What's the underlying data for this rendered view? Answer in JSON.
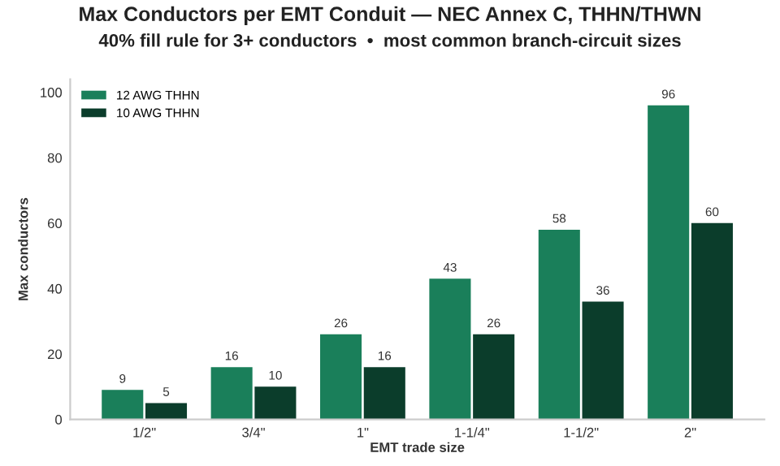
{
  "chart_data": {
    "type": "bar",
    "title": "Max Conductors per EMT Conduit — NEC Annex C, THHN/THWN",
    "subtitle": "40% fill rule for 3+ conductors  •  most common branch-circuit sizes",
    "xlabel": "EMT trade size",
    "ylabel": "Max conductors",
    "categories": [
      "1/2\"",
      "3/4\"",
      "1\"",
      "1-1/4\"",
      "1-1/2\"",
      "2\""
    ],
    "series": [
      {
        "name": "12 AWG THHN",
        "color": "#1a7f5a",
        "values": [
          9,
          16,
          26,
          43,
          58,
          96
        ]
      },
      {
        "name": "10 AWG THHN",
        "color": "#0b3d2b",
        "values": [
          5,
          10,
          16,
          26,
          36,
          60
        ]
      }
    ],
    "ylim": [
      0,
      104
    ],
    "yticks": [
      0,
      20,
      40,
      60,
      80,
      100
    ],
    "data_labels": true,
    "legend": "top left",
    "grid": false
  }
}
